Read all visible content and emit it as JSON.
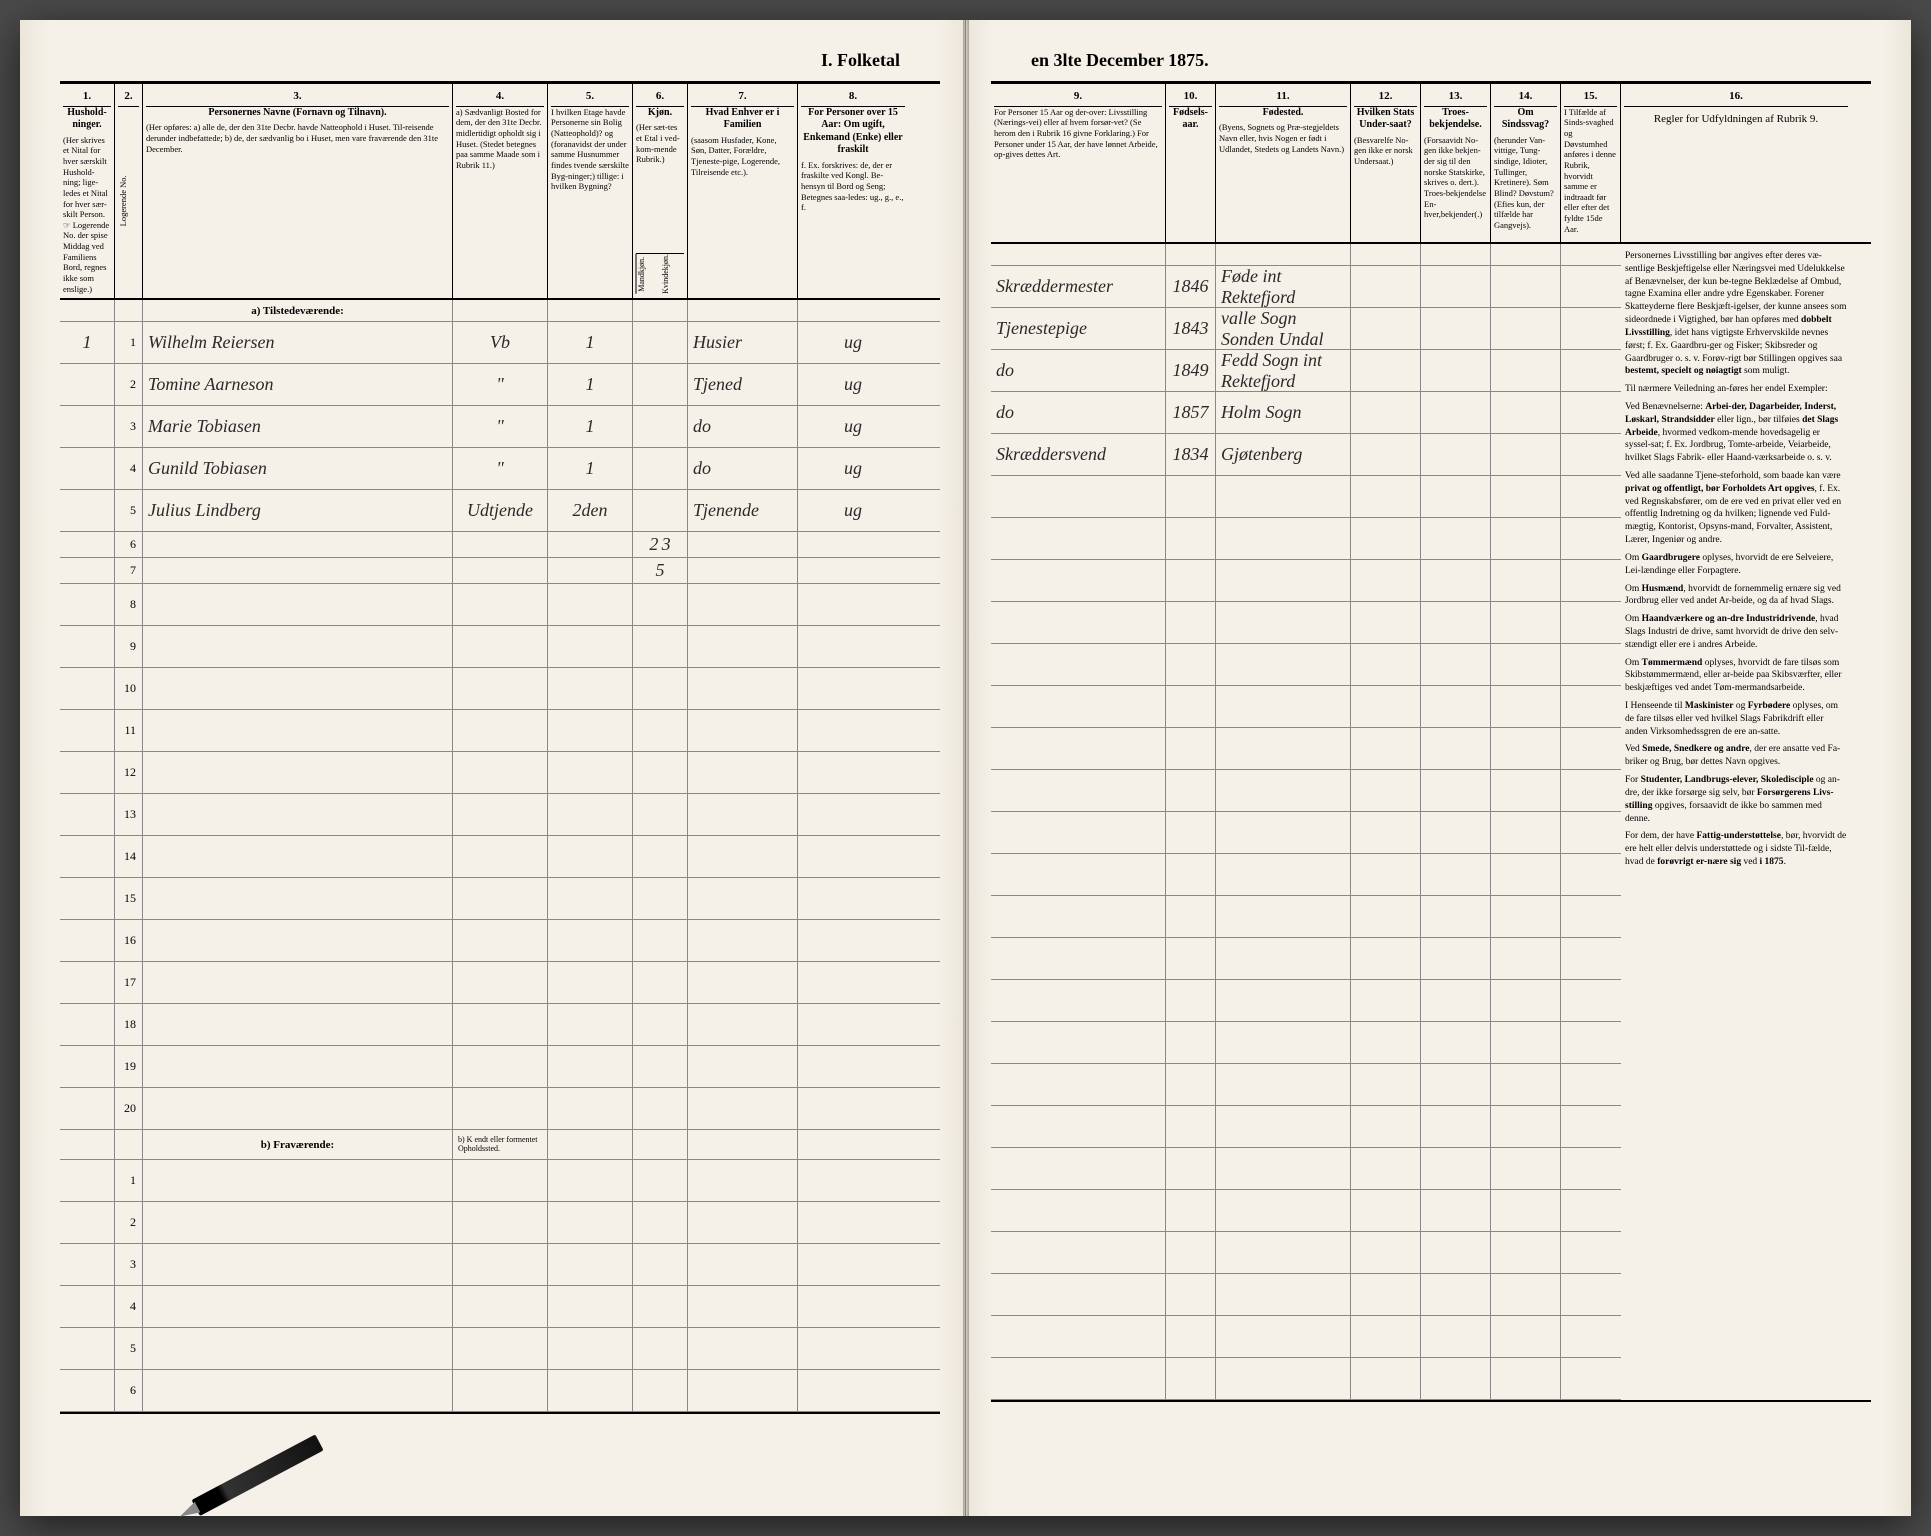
{
  "title_left": "I. Folketal",
  "title_right": "en 3lte December 1875.",
  "left_columns": {
    "c1": {
      "num": "1.",
      "title": "Hushold-\nninger.",
      "body": "(Her skrives et Nital for hver særskilt Hushold-ning; lige-ledes et Nital for hver sær-skilt Person. ☞ Logerende No. der spise Middag ved Familiens Bord, regnes ikke som enslige.)"
    },
    "c2": {
      "num": "2.",
      "body": "Logerende No."
    },
    "c3": {
      "num": "3.",
      "title": "Personernes Navne (Fornavn og Tilnavn).",
      "body": "(Her opføres:\na) alle de, der den 31te Decbr. havde Natteophold i Huset. Til-reisende derunder indbefattede;\nb) de, der sædvanlig bo i Huset, men vare fraværende den 31te December."
    },
    "c4": {
      "num": "4.",
      "title": "",
      "body": "a) Sædvanligt Bosted for dem, der den 31te Decbr. midlertidigt opholdt sig i Huset.\n(Stedet betegnes paa samme Maade som i Rubrik 11.)"
    },
    "c5": {
      "num": "5.",
      "title": "I hvilken Etage havde Personerne sin Bolig (Natteophold)? og (foranavidst der under samme Husnummer findes tvende særskilte Byg-ninger;) tillige: i hvilken Bygning?"
    },
    "c6": {
      "num": "6.",
      "title": "Kjøn.",
      "body": "(Her sæt-tes et Etal i ved-kom-mende Rubrik.)",
      "sub1": "Mandkjøn.",
      "sub2": "Kvindekjøn."
    },
    "c7": {
      "num": "7.",
      "title": "Hvad Enhver er i Familien",
      "body": "(saasom Husfader, Kone, Søn, Datter, Forældre, Tjeneste-pige, Logerende, Tilreisende etc.)."
    },
    "c8": {
      "num": "8.",
      "title": "For Personer over 15 Aar: Om ugift, Enkemand (Enke) eller fraskilt",
      "body": "f. Ex. forskrives: de, der er fraskilte ved Kongl. Be-hensyn til Bord og Seng;\nBetegnes saa-ledes: ug., g., e., f."
    }
  },
  "right_columns": {
    "c9": {
      "num": "9.",
      "title": "",
      "body": "For Personer 15 Aar og der-over: Livsstilling (Nærings-vei) eller af hvem forsør-vet? (Se herom den i Rubrik 16 givne Forklaring.)\nFor Personer under 15 Aar, der have lønnet Arbeide, op-gives dettes Art."
    },
    "c10": {
      "num": "10.",
      "title": "Fødsels-aar."
    },
    "c11": {
      "num": "11.",
      "title": "Fødested.",
      "body": "(Byens, Sognets og Præ-stegjeldets Navn eller, hvis Nogen er født i Udlandet, Stedets og Landets Navn.)"
    },
    "c12": {
      "num": "12.",
      "title": "Hvilken Stats Under-saat?",
      "body": "(Besvarelfe No-gen ikke er norsk Undersaat.)"
    },
    "c13": {
      "num": "13.",
      "title": "Troes-bekjendelse.",
      "body": "(Forsaavidt No-gen ikke bekjen-der sig til den norske Statskirke, skrives o. dert.). Troes-bekjendelse En-hver,bekjender(.)"
    },
    "c14": {
      "num": "14.",
      "title": "Om Sindssvag?",
      "body": "(herunder Van-vittige, Tung-sindige, Idioter, Tullinger, Kretinere).\nSøm Blind?\nDøvstum?\n(Efies kun, der tilfælde har Gangvejs)."
    },
    "c15": {
      "num": "15.",
      "title": "I Tilfælde af Sinds-svaghed og Døvstumhed anføres i denne Rubrik, hvorvidt samme er indtraadt før eller efter det fyldte 15de Aar."
    },
    "c16": {
      "num": "16.",
      "title": "Regler for Udfyldningen\naf\nRubrik 9."
    }
  },
  "section_a": "a) Tilstedeværende:",
  "section_b": "b) Fraværende:",
  "section_b_note": "b) K endt eller formentet Opholdssted.",
  "rows": [
    {
      "h": "1",
      "n": "1",
      "name": "Wilhelm Reiersen",
      "c4": "Vb",
      "c5": "1",
      "c6m": "",
      "c6k": "",
      "c7": "Husier",
      "c8": "ug",
      "c9": "Skræddermester",
      "c10": "1846",
      "c11": "Føde int Rektefjord"
    },
    {
      "h": "",
      "n": "2",
      "name": "Tomine Aarneson",
      "c4": "\"",
      "c5": "1",
      "c7": "Tjened",
      "c8": "ug",
      "c9": "Tjenestepige",
      "c10": "1843",
      "c11": "valle Sogn Sonden Undal"
    },
    {
      "h": "",
      "n": "3",
      "name": "Marie Tobiasen",
      "c4": "\"",
      "c5": "1",
      "c7": "do",
      "c8": "ug",
      "c9": "do",
      "c10": "1849",
      "c11": "Fedd Sogn int Rektefjord"
    },
    {
      "h": "",
      "n": "4",
      "name": "Gunild Tobiasen",
      "c4": "\"",
      "c5": "1",
      "c7": "do",
      "c8": "ug",
      "c9": "do",
      "c10": "1857",
      "c11": "Holm Sogn"
    },
    {
      "h": "",
      "n": "5",
      "name": "Julius Lindberg",
      "c4": "Udtjende",
      "c5": "2den",
      "c7": "Tjenende",
      "c8": "ug",
      "c9": "Skræddersvend",
      "c10": "1834",
      "c11": "Gjøtenberg"
    }
  ],
  "subtotal1": {
    "m": "2",
    "k": "3"
  },
  "subtotal2": {
    "total": "5"
  },
  "empty_rows_a": [
    "6",
    "7",
    "8",
    "9",
    "10",
    "11",
    "12",
    "13",
    "14",
    "15",
    "16",
    "17",
    "18",
    "19",
    "20"
  ],
  "empty_rows_b": [
    "1",
    "2",
    "3",
    "4",
    "5",
    "6"
  ],
  "rules_paragraphs": [
    "Personernes Livsstilling bør angives efter deres væ-sentlige Beskjeftigelse eller Næringsvei med Udelukkelse af Benævnelser, der kun be-tegne Beklædelse af Ombud, tagne Examina eller andre ydre Egenskaber. Forener Skatteyderne flere Beskjæft-igelser, der kunne ansees som sideordnede i Vigtighed, bør han opføres med <b>dobbelt Livsstilling</b>, idet hans vigtigste Erhvervskilde nevnes først; f. Ex. Gaardbru-ger og Fisker; Skibsreder og Gaardbruger o. s. v. Forøv-rigt bør Stillingen opgives saa <b>bestemt, specielt og nøiagtigt</b> som muligt.",
    "Til nærmere Veiledning an-føres her endel Exempler:",
    "Ved Benævnelserne: <b>Arbei-der, Dagarbeider, Inderst, Løskarl, Strandsidder</b> eller lign., bør tilføies <b>det Slags Arbeide</b>, hvormed vedkom-mende hovedsagelig er syssel-sat; f. Ex. Jordbrug, Tomte-arbeide, Veiarbeide, hvilket Slags Fabrik- eller Haand-værksarbeide o. s. v.",
    "Ved alle saadanne Tjene-steforhold, som baade kan være <b>privat og offentligt, bør Forholdets Art opgives</b>, f. Ex. ved Regnskabsfører, om de ere ved en privat eller ved en offentlig Indretning og da hvilken; lignende ved Fuld-mægtig, Kontorist, Opsyns-mand, Forvalter, Assistent, Lærer, Ingeniør og andre.",
    "Om <b>Gaardbrugere</b> oplyses, hvorvidt de ere Selveiere, Lei-lændinge eller Forpagtere.",
    "Om <b>Husmænd</b>, hvorvidt de fornemmelig ernære sig ved Jordbrug eller ved andet Ar-beide, og da af hvad Slags.",
    "Om <b>Haandværkere og an-dre Industridrivende</b>, hvad Slags Industri de drive, samt hvorvidt de drive den selv-stændigt eller ere i andres Arbeide.",
    "Om <b>Tømmermænd</b> oplyses, hvorvidt de fare tilsøs som Skibstømmermænd, eller ar-beide paa Skibsværfter, eller beskjæftiges ved andet Tøm-mermandsarbeide.",
    "I Henseende til <b>Maskinister</b> og <b>Fyrbødere</b> oplyses, om de fare tilsøs eller ved hvilkel Slags Fabrikdrift eller anden Virksomhedssgren de ere an-satte.",
    "Ved <b>Smede, Snedkere og andre</b>, der ere ansatte ved Fa-briker og Brug, bør dettes Navn opgives.",
    "For <b>Studenter, Landbrugs-elever, Skoledisciple</b> og an-dre, der ikke forsørge sig selv, bør <b>Forsørgerens Livs-stilling</b> opgives, forsaavidt de ikke bo sammen med denne.",
    "For dem, der have <b>Fattig-understøttelse</b>, bør, hvorvidt de ere helt eller delvis understøttede og i sidste Til-fælde, hvad de <b>forøvrigt er-nære sig</b> ved <b>i 1875</b>."
  ]
}
